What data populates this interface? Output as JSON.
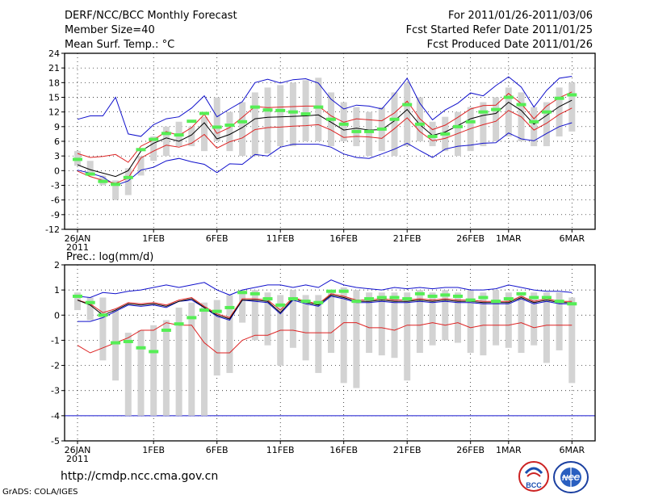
{
  "header": {
    "left": [
      "DERF/NCC/BCC Monthly Forecast",
      "Member Size=40",
      "Mean Surf. Temp.: °C"
    ],
    "right": [
      "For 2011/01/26-2011/03/06",
      "Fcst Started Refer Date 2011/01/25",
      "Fcst Produced Date 2011/01/26"
    ]
  },
  "footer": {
    "url": "http://cmdp.ncc.cma.gov.cn",
    "credit": "GrADS: COLA/IGES"
  },
  "logos": {
    "bcc_text": "BCC",
    "ncc_text": "NCC"
  },
  "colors": {
    "box": "#d3d3d3",
    "median": "#55ee55",
    "mean": "#000000",
    "inner": "#dd2222",
    "outer": "#1010cc",
    "frame": "#000000"
  },
  "chart_data": [
    {
      "type": "box",
      "title": "Mean Surf. Temp.: °C",
      "ylim": [
        -12,
        24
      ],
      "yticks": [
        -12,
        -9,
        -6,
        -3,
        0,
        3,
        6,
        9,
        12,
        15,
        18,
        21,
        24
      ],
      "xlabels": [
        {
          "day": 1,
          "label": "26JAN"
        },
        {
          "day": 7,
          "label": "1FEB"
        },
        {
          "day": 12,
          "label": "6FEB"
        },
        {
          "day": 17,
          "label": "11FEB"
        },
        {
          "day": 22,
          "label": "16FEB"
        },
        {
          "day": 27,
          "label": "21FEB"
        },
        {
          "day": 32,
          "label": "26FEB"
        },
        {
          "day": 35,
          "label": "1MAR"
        },
        {
          "day": 40,
          "label": "6MAR"
        }
      ],
      "year_label": "2011",
      "box_low": [
        1.0,
        -1.0,
        -3.0,
        -6.0,
        -5.0,
        -1.0,
        2.0,
        3.0,
        5.0,
        5.0,
        4.0,
        6.0,
        4.0,
        3.0,
        3.0,
        3.5,
        5.0,
        5.0,
        6.0,
        6.0,
        5.0,
        6.0,
        5.0,
        3.0,
        4.0,
        3.0,
        5.0,
        6.0,
        5.0,
        4.0,
        3.0,
        4.0,
        5.0,
        6.0,
        7.0,
        6.0,
        5.0,
        5.0,
        7.0,
        8.0
      ],
      "box_high": [
        4.0,
        2.0,
        -1.0,
        -2.0,
        0.5,
        3.0,
        7.0,
        9.0,
        10.0,
        9.0,
        11.0,
        15.0,
        12.0,
        14.0,
        16.0,
        17.0,
        17.5,
        18.0,
        18.5,
        19.0,
        16.0,
        14.0,
        13.0,
        12.0,
        13.0,
        16.0,
        18.0,
        15.0,
        10.0,
        11.0,
        12.0,
        13.0,
        14.0,
        15.0,
        17.0,
        16.0,
        13.0,
        14.0,
        17.0,
        18.0
      ],
      "median": [
        2.3,
        -0.7,
        -2.2,
        -2.8,
        -1.4,
        4.3,
        6.4,
        7.6,
        7.3,
        10.1,
        11.7,
        8.9,
        9.3,
        10.0,
        13.0,
        12.4,
        12.3,
        12.0,
        11.6,
        13.0,
        10.5,
        9.5,
        8.0,
        8.0,
        8.5,
        10.5,
        13.5,
        9.5,
        7.0,
        7.5,
        9.0,
        10.0,
        12.0,
        12.5,
        15.0,
        13.5,
        10.0,
        12.0,
        14.8,
        15.5
      ],
      "mean": [
        1.2,
        0.2,
        -0.5,
        -1.2,
        0.0,
        4.0,
        5.6,
        6.7,
        6.0,
        7.3,
        9.8,
        6.5,
        7.4,
        8.8,
        10.6,
        10.9,
        11.0,
        11.1,
        11.2,
        11.4,
        9.9,
        8.3,
        8.7,
        8.3,
        8.4,
        10.2,
        12.5,
        9.4,
        7.2,
        7.9,
        9.2,
        10.6,
        11.3,
        11.7,
        14.0,
        12.3,
        9.5,
        11.3,
        13.1,
        14.4
      ],
      "inner_high": [
        3.5,
        2.7,
        2.9,
        3.3,
        1.7,
        5.0,
        6.3,
        8.0,
        7.2,
        8.8,
        11.5,
        7.6,
        8.8,
        10.9,
        13.1,
        12.9,
        13.0,
        13.1,
        13.2,
        13.2,
        11.2,
        9.9,
        10.6,
        10.4,
        10.2,
        11.8,
        14.2,
        10.6,
        8.4,
        9.3,
        10.9,
        12.6,
        13.3,
        13.4,
        15.8,
        13.7,
        10.6,
        13.2,
        14.9,
        16.1
      ],
      "inner_low": [
        -0.1,
        -1.2,
        -2.0,
        -2.6,
        -1.5,
        2.6,
        4.0,
        5.2,
        4.8,
        5.6,
        7.4,
        4.6,
        5.9,
        6.7,
        8.4,
        8.8,
        8.9,
        9.1,
        9.2,
        9.4,
        8.3,
        6.8,
        7.0,
        6.9,
        6.6,
        8.6,
        10.8,
        8.0,
        6.1,
        6.6,
        7.6,
        8.6,
        9.4,
        10.1,
        12.3,
        11.0,
        8.3,
        9.7,
        11.5,
        12.8
      ],
      "outer_high": [
        10.5,
        11.2,
        11.2,
        15.0,
        7.5,
        7.0,
        9.4,
        10.6,
        11.0,
        12.8,
        15.3,
        11.0,
        12.6,
        14.1,
        18.0,
        18.7,
        17.9,
        18.6,
        18.8,
        17.9,
        14.6,
        12.6,
        13.4,
        13.2,
        12.6,
        15.6,
        18.9,
        13.8,
        10.4,
        12.4,
        13.8,
        15.9,
        15.3,
        17.4,
        19.2,
        17.1,
        13.0,
        16.4,
        18.9,
        19.3
      ],
      "outer_low": [
        0.1,
        -0.5,
        -1.3,
        -3.0,
        -2.1,
        0.1,
        0.7,
        2.0,
        2.5,
        1.8,
        1.3,
        -0.4,
        1.4,
        1.3,
        3.3,
        3.0,
        4.8,
        5.4,
        5.4,
        5.4,
        4.8,
        3.4,
        2.7,
        2.5,
        3.4,
        4.4,
        5.6,
        4.1,
        2.7,
        4.4,
        5.0,
        5.2,
        5.6,
        5.7,
        7.7,
        6.5,
        6.1,
        7.6,
        9.0,
        9.8
      ]
    },
    {
      "type": "box",
      "title": "Prec.: log(mm/d)",
      "ylim": [
        -5,
        2
      ],
      "yticks": [
        -5,
        -4,
        -3,
        -2,
        -1,
        0,
        1,
        2
      ],
      "xlabels": [
        {
          "day": 1,
          "label": "26JAN"
        },
        {
          "day": 7,
          "label": "1FEB"
        },
        {
          "day": 12,
          "label": "6FEB"
        },
        {
          "day": 17,
          "label": "11FEB"
        },
        {
          "day": 22,
          "label": "16FEB"
        },
        {
          "day": 27,
          "label": "21FEB"
        },
        {
          "day": 32,
          "label": "26FEB"
        },
        {
          "day": 35,
          "label": "1MAR"
        },
        {
          "day": 40,
          "label": "6MAR"
        }
      ],
      "year_label": "2011",
      "box_low": [
        0.2,
        -0.2,
        -1.8,
        -2.6,
        -4.0,
        -4.0,
        -4.0,
        -4.0,
        -4.0,
        -4.0,
        -4.0,
        -2.4,
        -2.3,
        -0.3,
        -1.0,
        -1.2,
        -2.0,
        -1.3,
        -1.8,
        -2.3,
        -1.5,
        -2.7,
        -2.9,
        -1.5,
        -1.6,
        -1.7,
        -2.6,
        -1.5,
        -1.2,
        -1.0,
        -1.1,
        -1.5,
        -1.6,
        -1.2,
        -1.3,
        -1.5,
        -1.2,
        -1.9,
        -1.4,
        -2.7
      ],
      "box_high": [
        0.9,
        0.7,
        0.7,
        0.2,
        -0.7,
        -0.6,
        -0.4,
        -0.2,
        0.3,
        0.5,
        0.5,
        0.6,
        0.8,
        1.0,
        1.0,
        0.9,
        0.8,
        1.0,
        0.8,
        0.8,
        0.9,
        1.1,
        1.0,
        0.9,
        0.9,
        0.9,
        0.9,
        1.0,
        0.9,
        1.0,
        0.9,
        1.0,
        0.9,
        1.0,
        0.9,
        0.9,
        0.9,
        0.9,
        0.9,
        0.7
      ],
      "median": [
        0.75,
        0.5,
        0.0,
        -1.1,
        -1.05,
        -1.3,
        -1.45,
        -0.6,
        -0.35,
        -0.1,
        0.2,
        0.15,
        0.3,
        0.9,
        0.85,
        0.65,
        0.4,
        0.65,
        0.55,
        0.5,
        0.95,
        0.95,
        0.55,
        0.65,
        0.7,
        0.7,
        0.65,
        0.85,
        0.75,
        0.8,
        0.75,
        0.6,
        0.7,
        0.55,
        0.65,
        0.85,
        0.7,
        0.7,
        0.55,
        0.45
      ],
      "mean": [
        0.6,
        0.4,
        0.0,
        0.2,
        0.45,
        0.4,
        0.45,
        0.35,
        0.55,
        0.65,
        0.3,
        0.0,
        -0.15,
        0.6,
        0.6,
        0.55,
        0.1,
        0.65,
        0.5,
        0.4,
        0.8,
        0.7,
        0.55,
        0.55,
        0.6,
        0.55,
        0.55,
        0.6,
        0.55,
        0.6,
        0.55,
        0.55,
        0.5,
        0.5,
        0.5,
        0.7,
        0.5,
        0.6,
        0.5,
        0.5
      ],
      "inner_high": [
        0.6,
        0.45,
        0.1,
        0.25,
        0.5,
        0.45,
        0.5,
        0.4,
        0.6,
        0.7,
        0.35,
        0.05,
        -0.1,
        0.65,
        0.65,
        0.6,
        0.2,
        0.7,
        0.55,
        0.45,
        0.85,
        0.75,
        0.6,
        0.6,
        0.65,
        0.6,
        0.6,
        0.65,
        0.6,
        0.65,
        0.6,
        0.6,
        0.55,
        0.55,
        0.55,
        0.75,
        0.55,
        0.65,
        0.55,
        0.55
      ],
      "inner_low": [
        -1.2,
        -1.5,
        -1.3,
        -1.1,
        -0.9,
        -0.6,
        -0.6,
        -0.3,
        -0.4,
        -0.4,
        -1.1,
        -1.5,
        -1.5,
        -1.0,
        -0.8,
        -0.8,
        -0.6,
        -0.6,
        -0.7,
        -0.7,
        -0.7,
        -0.3,
        -0.3,
        -0.5,
        -0.5,
        -0.6,
        -0.4,
        -0.4,
        -0.3,
        -0.4,
        -0.3,
        -0.5,
        -0.4,
        -0.4,
        -0.4,
        -0.3,
        -0.5,
        -0.4,
        -0.4,
        -0.4
      ],
      "outer_high": [
        0.75,
        0.7,
        0.9,
        0.85,
        0.95,
        1.0,
        1.1,
        1.2,
        1.1,
        1.2,
        1.3,
        1.0,
        0.8,
        1.0,
        1.1,
        1.2,
        1.2,
        1.1,
        1.2,
        1.1,
        1.4,
        1.2,
        1.1,
        1.05,
        1.0,
        1.1,
        1.05,
        1.1,
        1.05,
        1.1,
        1.1,
        1.0,
        1.0,
        1.05,
        1.2,
        1.1,
        1.0,
        0.95,
        0.95,
        0.9
      ],
      "outer_low": [
        -0.25,
        -0.25,
        -0.1,
        0.15,
        0.4,
        0.35,
        0.4,
        0.3,
        0.55,
        0.6,
        0.3,
        -0.05,
        -0.2,
        0.6,
        0.55,
        0.5,
        0.05,
        0.6,
        0.45,
        0.35,
        0.75,
        0.65,
        0.5,
        0.5,
        0.55,
        0.5,
        0.5,
        0.55,
        0.5,
        0.55,
        0.5,
        0.5,
        0.45,
        0.45,
        0.45,
        0.65,
        0.45,
        0.55,
        0.45,
        0.45
      ],
      "reference_value": -4
    }
  ]
}
